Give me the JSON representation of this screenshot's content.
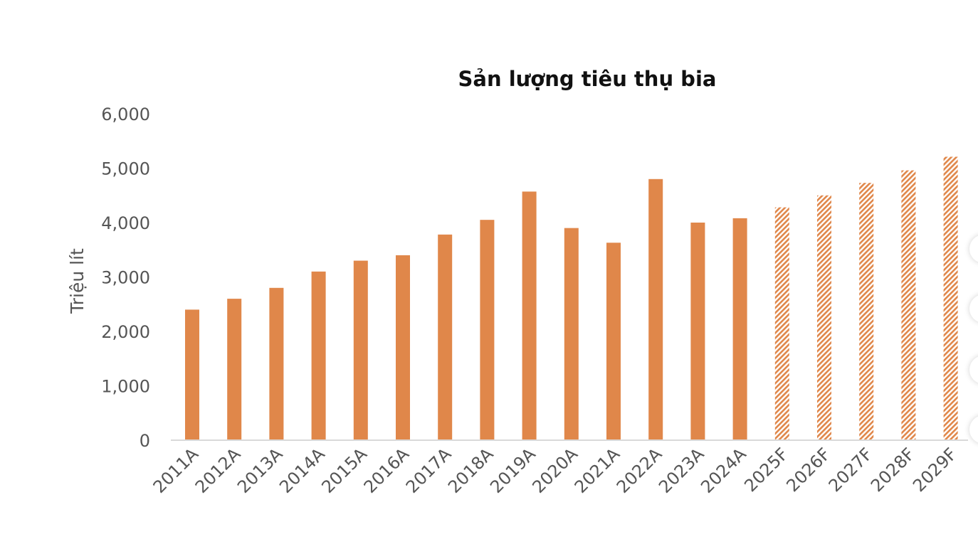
{
  "chart_data": {
    "type": "bar",
    "title": "Sản lượng tiêu thụ bia",
    "ylabel": "Triệu lít",
    "xlabel": "",
    "ylim": [
      0,
      6000
    ],
    "yticks": [
      "0",
      "1,000",
      "2,000",
      "3,000",
      "4,000",
      "5,000",
      "6,000"
    ],
    "grid": false,
    "categories": [
      "2011A",
      "2012A",
      "2013A",
      "2014A",
      "2015A",
      "2016A",
      "2017A",
      "2018A",
      "2019A",
      "2020A",
      "2021A",
      "2022A",
      "2023A",
      "2024A",
      "2025F",
      "2026F",
      "2027F",
      "2028F",
      "2029F"
    ],
    "values": [
      2400,
      2600,
      2800,
      3100,
      3300,
      3400,
      3780,
      4050,
      4570,
      3900,
      3630,
      4800,
      4000,
      4080,
      4280,
      4500,
      4730,
      4960,
      5210
    ],
    "bar_color": "#E0874A",
    "forecast_style": "hatched"
  }
}
